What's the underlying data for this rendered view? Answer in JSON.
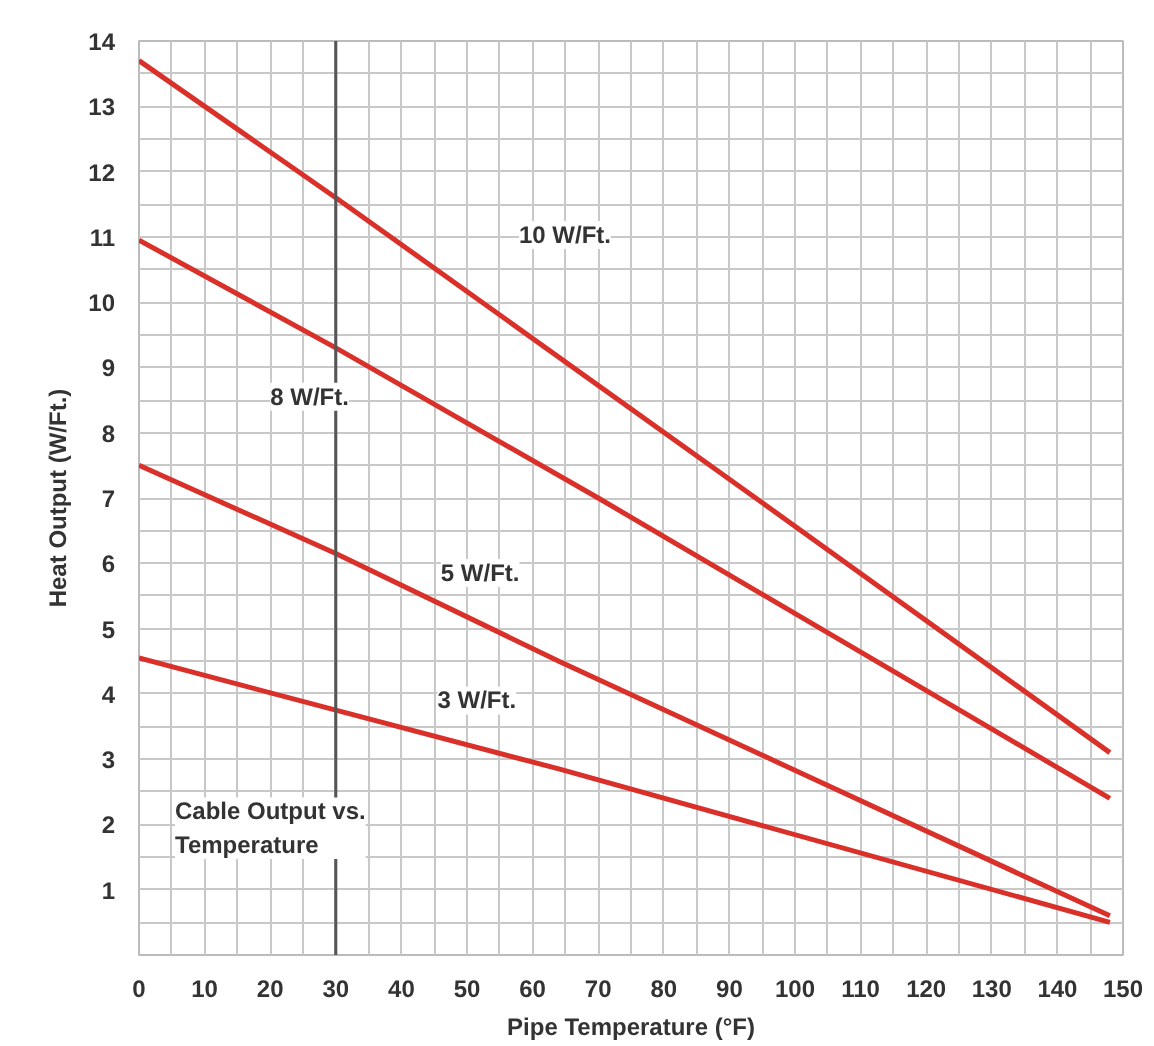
{
  "chart_data": {
    "type": "line",
    "title": "Cable Output vs. Temperature",
    "xlabel": "Pipe Temperature (°F)",
    "ylabel": "Heat Output (W/Ft.)",
    "x": [
      0,
      30,
      64,
      148
    ],
    "series": [
      {
        "color": "#d9302a",
        "x": [
          0,
          30,
          94,
          148
        ],
        "values": [
          13.7,
          11.6,
          7.0,
          3.1
        ]
      },
      {
        "color": "#d9302a",
        "x": [
          0,
          30,
          70,
          148
        ],
        "values": [
          10.95,
          9.3,
          7.0,
          2.4
        ]
      },
      {
        "color": "#d9302a",
        "values": [
          7.5,
          6.15,
          4.5,
          0.6
        ]
      },
      {
        "color": "#d9302a",
        "values": [
          4.55,
          3.75,
          2.85,
          0.5
        ]
      }
    ],
    "annotations": [
      "10 W/Ft.",
      {
        "text": "8 W/Ft.",
        "x": 26,
        "y": 8.55
      },
      {
        "text": "5 W/Ft.",
        "x": 52,
        "y": 5.85
      },
      {
        "text": "3 W/Ft.",
        "x": 51.5,
        "y": 3.9
      }
    ],
    "ref_lines": [
      {
        "axis": "x",
        "value": 30,
        "color": "#555555"
      }
    ],
    "xlim": [
      0,
      150
    ],
    "ylim": [
      0,
      14
    ],
    "xticks": [
      0,
      10,
      20,
      30,
      40,
      50,
      60,
      70,
      80,
      90,
      100,
      110,
      120,
      130,
      140,
      150
    ],
    "yticks": [
      1,
      2,
      3,
      4,
      5,
      6,
      7,
      8,
      9,
      10,
      11,
      12,
      13,
      14
    ],
    "grid": true,
    "marker": "none",
    "line_style": "solid"
  }
}
